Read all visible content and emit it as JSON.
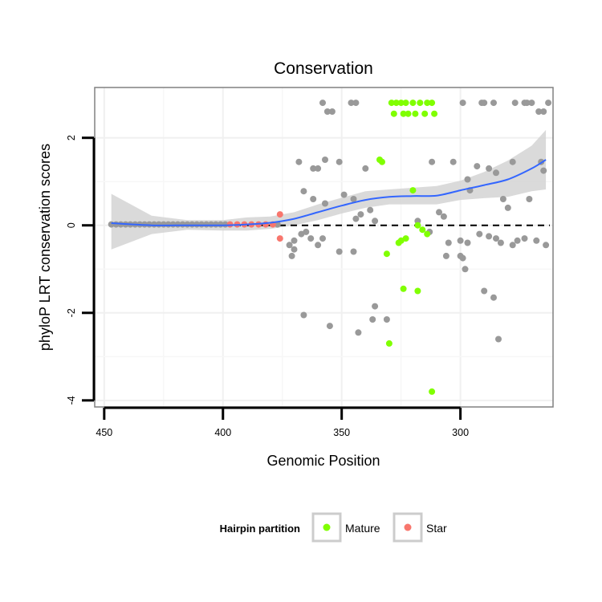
{
  "chart_data": {
    "type": "scatter",
    "title": "Conservation",
    "xlabel": "Genomic Position",
    "ylabel": "phyloP LRT conservation scores",
    "x_reversed": true,
    "xlim": [
      454,
      261
    ],
    "ylim": [
      -4.15,
      3.15
    ],
    "x_ticks": [
      450,
      400,
      350,
      300
    ],
    "y_ticks": [
      -4,
      -2,
      0,
      2
    ],
    "grid": true,
    "reference_line": {
      "y": 0,
      "style": "dashed"
    },
    "legend": {
      "title": "Hairpin partition",
      "placement": "bottom",
      "entries": [
        {
          "name": "Mature",
          "color": "#80ff00"
        },
        {
          "name": "Star",
          "color": "#f8766d"
        }
      ]
    },
    "colors": {
      "other": "#999999",
      "smooth_line": "#3366ff",
      "ribbon": "#d3d3d3",
      "panel_border": "#808080"
    },
    "series": [
      {
        "name": "",
        "color": "#999999",
        "points": [
          [
            447,
            0.02
          ],
          [
            445,
            0.02
          ],
          [
            443,
            0.02
          ],
          [
            441,
            0.02
          ],
          [
            439,
            0.02
          ],
          [
            437,
            0.02
          ],
          [
            435,
            0.02
          ],
          [
            433,
            0.02
          ],
          [
            431,
            0.02
          ],
          [
            429,
            0.02
          ],
          [
            427,
            0.02
          ],
          [
            425,
            0.02
          ],
          [
            423,
            0.02
          ],
          [
            421,
            0.02
          ],
          [
            419,
            0.02
          ],
          [
            417,
            0.02
          ],
          [
            415,
            0.02
          ],
          [
            413,
            0.02
          ],
          [
            411,
            0.02
          ],
          [
            409,
            0.02
          ],
          [
            407,
            0.02
          ],
          [
            405,
            0.02
          ],
          [
            403,
            0.02
          ],
          [
            401,
            0.02
          ],
          [
            399,
            0.02
          ],
          [
            377,
            0.02
          ],
          [
            358,
            2.8
          ],
          [
            356,
            2.6
          ],
          [
            354,
            2.6
          ],
          [
            346,
            2.8
          ],
          [
            344,
            2.8
          ],
          [
            299,
            2.8
          ],
          [
            291,
            2.8
          ],
          [
            290,
            2.8
          ],
          [
            286,
            2.8
          ],
          [
            277,
            2.8
          ],
          [
            273,
            2.8
          ],
          [
            272,
            2.8
          ],
          [
            270,
            2.8
          ],
          [
            267,
            2.6
          ],
          [
            265,
            2.6
          ],
          [
            263,
            2.8
          ],
          [
            368,
            1.45
          ],
          [
            362,
            1.3
          ],
          [
            360,
            1.3
          ],
          [
            357,
            1.5
          ],
          [
            351,
            1.45
          ],
          [
            340,
            1.3
          ],
          [
            312,
            1.45
          ],
          [
            303,
            1.45
          ],
          [
            297,
            1.05
          ],
          [
            293,
            1.35
          ],
          [
            288,
            1.3
          ],
          [
            285,
            1.2
          ],
          [
            278,
            1.45
          ],
          [
            266,
            1.45
          ],
          [
            265,
            1.25
          ],
          [
            366,
            0.78
          ],
          [
            362,
            0.6
          ],
          [
            357,
            0.5
          ],
          [
            349,
            0.7
          ],
          [
            345,
            0.6
          ],
          [
            344,
            0.15
          ],
          [
            342,
            0.25
          ],
          [
            338,
            0.35
          ],
          [
            318,
            0.1
          ],
          [
            309,
            0.3
          ],
          [
            307,
            0.2
          ],
          [
            296,
            0.8
          ],
          [
            282,
            0.6
          ],
          [
            280,
            0.4
          ],
          [
            271,
            0.6
          ],
          [
            370,
            -0.55
          ],
          [
            371,
            -0.7
          ],
          [
            372,
            -0.45
          ],
          [
            367,
            -0.2
          ],
          [
            365,
            -0.15
          ],
          [
            363,
            -0.3
          ],
          [
            360,
            -0.45
          ],
          [
            358,
            -0.3
          ],
          [
            351,
            -0.6
          ],
          [
            345,
            -0.6
          ],
          [
            336,
            0.1
          ],
          [
            313,
            -0.15
          ],
          [
            306,
            -0.7
          ],
          [
            305,
            -0.4
          ],
          [
            300,
            -0.35
          ],
          [
            297,
            -0.4
          ],
          [
            292,
            -0.2
          ],
          [
            288,
            -0.25
          ],
          [
            285,
            -0.3
          ],
          [
            283,
            -0.4
          ],
          [
            278,
            -0.45
          ],
          [
            276,
            -0.35
          ],
          [
            273,
            -0.3
          ],
          [
            268,
            -0.35
          ],
          [
            264,
            -0.45
          ],
          [
            366,
            -2.05
          ],
          [
            355,
            -2.3
          ],
          [
            343,
            -2.45
          ],
          [
            337,
            -2.15
          ],
          [
            336,
            -1.85
          ],
          [
            331,
            -2.15
          ],
          [
            290,
            -1.5
          ],
          [
            286,
            -1.65
          ],
          [
            284,
            -2.6
          ],
          [
            370,
            -0.35
          ],
          [
            300,
            -0.7
          ],
          [
            299,
            -0.75
          ],
          [
            298,
            -1.0
          ]
        ]
      },
      {
        "name": "Mature",
        "color": "#80ff00",
        "points": [
          [
            329,
            2.8
          ],
          [
            327,
            2.8
          ],
          [
            325,
            2.8
          ],
          [
            323,
            2.8
          ],
          [
            320,
            2.8
          ],
          [
            317,
            2.8
          ],
          [
            314,
            2.8
          ],
          [
            312,
            2.8
          ],
          [
            328,
            2.55
          ],
          [
            324,
            2.55
          ],
          [
            322,
            2.55
          ],
          [
            319,
            2.55
          ],
          [
            315,
            2.55
          ],
          [
            311,
            2.55
          ],
          [
            334,
            1.5
          ],
          [
            333,
            1.45
          ],
          [
            320,
            0.8
          ],
          [
            318,
            0.0
          ],
          [
            316,
            -0.1
          ],
          [
            314,
            -0.2
          ],
          [
            323,
            -0.3
          ],
          [
            325,
            -0.35
          ],
          [
            326,
            -0.4
          ],
          [
            331,
            -0.65
          ],
          [
            324,
            -1.45
          ],
          [
            318,
            -1.5
          ],
          [
            330,
            -2.7
          ],
          [
            312,
            -3.8
          ]
        ]
      },
      {
        "name": "Star",
        "color": "#f8766d",
        "points": [
          [
            397,
            0.02
          ],
          [
            394,
            0.02
          ],
          [
            391,
            0.02
          ],
          [
            388,
            0.02
          ],
          [
            385,
            0.02
          ],
          [
            382,
            0.02
          ],
          [
            379,
            0.02
          ],
          [
            376,
            0.25
          ],
          [
            376,
            -0.3
          ]
        ]
      }
    ],
    "smooth": {
      "x": [
        447,
        430,
        415,
        400,
        390,
        380,
        370,
        360,
        350,
        340,
        330,
        320,
        310,
        300,
        290,
        280,
        270,
        264
      ],
      "y": [
        0.05,
        0.0,
        0.0,
        0.0,
        0.02,
        0.06,
        0.15,
        0.3,
        0.45,
        0.58,
        0.65,
        0.67,
        0.68,
        0.8,
        0.92,
        1.05,
        1.3,
        1.5
      ],
      "lower": [
        -0.55,
        -0.2,
        -0.1,
        -0.12,
        -0.12,
        -0.08,
        0.0,
        0.12,
        0.27,
        0.4,
        0.48,
        0.48,
        0.48,
        0.58,
        0.62,
        0.65,
        0.78,
        0.82
      ],
      "upper": [
        0.72,
        0.22,
        0.12,
        0.12,
        0.18,
        0.2,
        0.3,
        0.48,
        0.63,
        0.78,
        0.82,
        0.86,
        0.9,
        1.02,
        1.22,
        1.48,
        1.82,
        2.18
      ]
    }
  }
}
